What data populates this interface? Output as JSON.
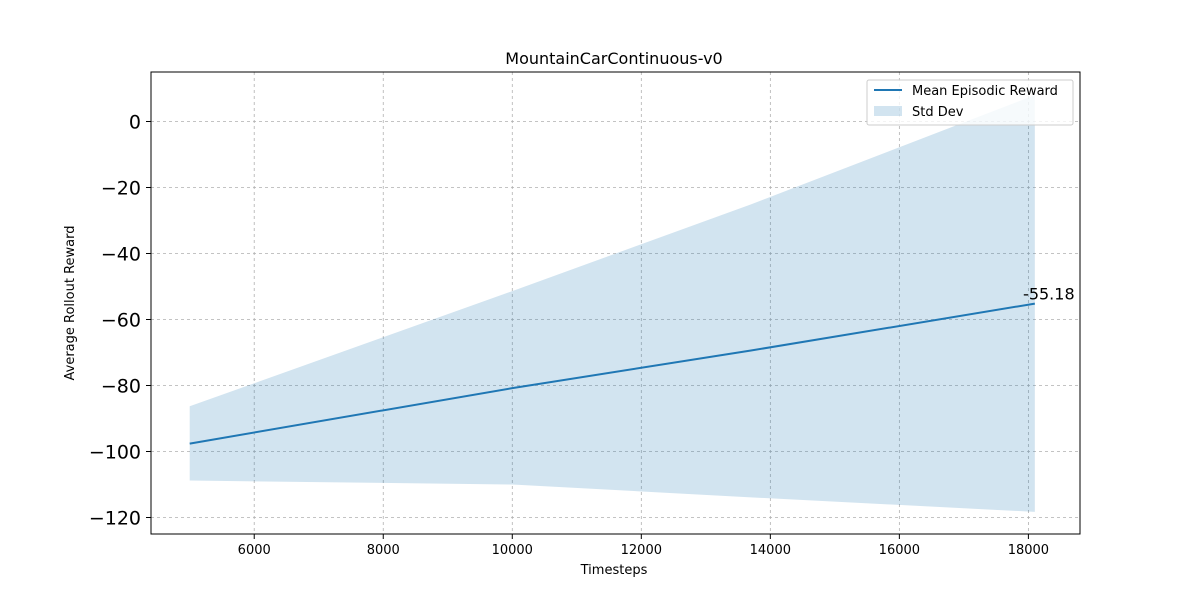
{
  "chart_data": {
    "type": "line",
    "title": "MountainCarContinuous-v0",
    "xlabel": "Timesteps",
    "ylabel": "Average Rollout Reward",
    "xlim": [
      4400,
      18800
    ],
    "ylim": [
      -125,
      15
    ],
    "xticks": [
      6000,
      8000,
      10000,
      12000,
      14000,
      16000,
      18000
    ],
    "yticks": [
      0,
      -20,
      -40,
      -60,
      -80,
      -100,
      -120
    ],
    "xtick_labels": [
      "6000",
      "8000",
      "10000",
      "12000",
      "14000",
      "16000",
      "18000"
    ],
    "ytick_labels": [
      "0",
      "−20",
      "−40",
      "−60",
      "−80",
      "−100",
      "−120"
    ],
    "grid": true,
    "legend_position": "top-right",
    "series": [
      {
        "name": "Mean Episodic Reward",
        "color": "#1f77b4",
        "x": [
          5000,
          10000,
          13700,
          18100
        ],
        "y": [
          -97.6,
          -80.8,
          -69.4,
          -55.18
        ]
      }
    ],
    "bands": [
      {
        "name": "Std Dev",
        "color": "#1f77b4",
        "opacity": 0.2,
        "x": [
          5000,
          10000,
          13700,
          18100
        ],
        "upper": [
          -86.3,
          -51.4,
          -25.1,
          8.0
        ],
        "lower": [
          -108.8,
          -110.0,
          -113.9,
          -118.3
        ]
      }
    ],
    "annotations": [
      {
        "text": "-55.18",
        "x": 18100,
        "y": -55.18
      }
    ]
  }
}
